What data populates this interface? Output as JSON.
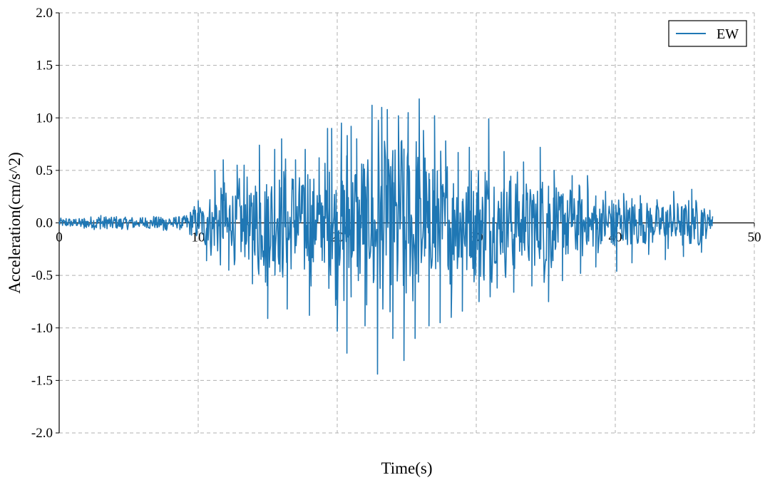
{
  "chart_data": {
    "type": "line",
    "title": "",
    "xlabel": "Time(s)",
    "ylabel": "Acceleration(cm/s^2)",
    "xlim": [
      0,
      50
    ],
    "ylim": [
      -2.0,
      2.0
    ],
    "xticks": [
      0,
      10,
      20,
      30,
      40,
      50
    ],
    "yticks": [
      -2.0,
      -1.5,
      -1.0,
      -0.5,
      0.0,
      0.5,
      1.0,
      1.5,
      2.0
    ],
    "ytick_labels": [
      "-2.0",
      "-1.5",
      "-1.0",
      "-0.5",
      "0.0",
      "0.5",
      "1.0",
      "1.5",
      "2.0"
    ],
    "grid": true,
    "legend": {
      "position": "top-right"
    },
    "series": [
      {
        "name": "EW",
        "color": "#1f77b4",
        "t_end": 47.0,
        "peaks": [
          [
            0.5,
            0.04
          ],
          [
            1.8,
            -0.05
          ],
          [
            3.0,
            0.07
          ],
          [
            4.5,
            -0.06
          ],
          [
            6.0,
            0.05
          ],
          [
            7.5,
            -0.07
          ],
          [
            9.0,
            0.06
          ],
          [
            10.0,
            0.21
          ],
          [
            10.6,
            -0.36
          ],
          [
            11.2,
            0.5
          ],
          [
            11.8,
            0.6
          ],
          [
            12.2,
            -0.45
          ],
          [
            12.8,
            0.55
          ],
          [
            13.3,
            0.55
          ],
          [
            13.9,
            -0.58
          ],
          [
            14.4,
            0.74
          ],
          [
            15.0,
            -0.91
          ],
          [
            15.5,
            0.7
          ],
          [
            16.0,
            0.8
          ],
          [
            16.4,
            -0.82
          ],
          [
            17.0,
            0.6
          ],
          [
            17.7,
            0.7
          ],
          [
            18.0,
            -0.88
          ],
          [
            18.7,
            0.62
          ],
          [
            19.3,
            0.9
          ],
          [
            19.6,
            0.9
          ],
          [
            20.0,
            -1.03
          ],
          [
            20.3,
            0.95
          ],
          [
            20.7,
            -1.24
          ],
          [
            21.0,
            0.92
          ],
          [
            21.4,
            0.8
          ],
          [
            22.0,
            -0.98
          ],
          [
            22.5,
            1.12
          ],
          [
            22.9,
            -1.44
          ],
          [
            23.2,
            1.1
          ],
          [
            23.6,
            1.08
          ],
          [
            24.0,
            -1.1
          ],
          [
            24.4,
            1.02
          ],
          [
            24.8,
            -1.31
          ],
          [
            25.1,
            1.05
          ],
          [
            25.6,
            -1.1
          ],
          [
            25.9,
            1.18
          ],
          [
            26.2,
            0.88
          ],
          [
            26.6,
            -0.98
          ],
          [
            27.0,
            1.02
          ],
          [
            27.4,
            -0.95
          ],
          [
            27.8,
            0.78
          ],
          [
            28.2,
            -0.9
          ],
          [
            28.7,
            0.67
          ],
          [
            29.0,
            -0.84
          ],
          [
            29.5,
            0.72
          ],
          [
            30.2,
            -0.75
          ],
          [
            30.9,
            0.99
          ],
          [
            31.5,
            -0.62
          ],
          [
            32.0,
            0.68
          ],
          [
            32.7,
            -0.66
          ],
          [
            33.4,
            0.58
          ],
          [
            34.0,
            -0.6
          ],
          [
            34.6,
            0.72
          ],
          [
            35.2,
            -0.75
          ],
          [
            35.6,
            0.5
          ],
          [
            36.2,
            -0.55
          ],
          [
            36.9,
            0.45
          ],
          [
            37.5,
            -0.48
          ],
          [
            38.0,
            0.45
          ],
          [
            38.6,
            -0.42
          ],
          [
            39.3,
            0.3
          ],
          [
            40.1,
            -0.46
          ],
          [
            40.6,
            0.28
          ],
          [
            41.2,
            -0.38
          ],
          [
            41.8,
            0.26
          ],
          [
            42.4,
            -0.3
          ],
          [
            43.0,
            0.22
          ],
          [
            43.6,
            -0.35
          ],
          [
            44.2,
            0.3
          ],
          [
            44.9,
            -0.32
          ],
          [
            45.5,
            0.32
          ],
          [
            46.2,
            -0.28
          ],
          [
            46.8,
            0.12
          ]
        ]
      }
    ]
  }
}
